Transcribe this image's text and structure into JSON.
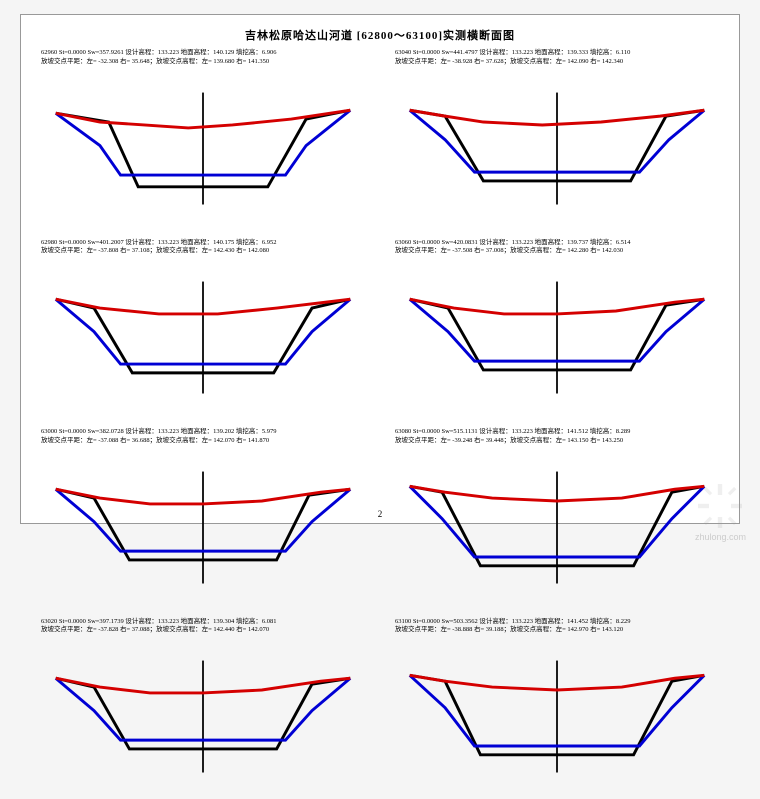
{
  "title": "吉林松原哈达山河道 [62800～63100]实测横断面图",
  "page_number": "2",
  "watermark": "zhulong.com",
  "colors": {
    "ground": "#d40000",
    "design": "#0000d4",
    "excavation": "#000000",
    "center": "#000000",
    "border": "#000000"
  },
  "line_width": 1.0,
  "sections": [
    {
      "id": "62960",
      "line1": "62960 St=0.0000 Sw=357.9261 设计高程：133.223 地面高程：140.129 填挖高：6.906",
      "line2": "放坡交点平距：左= -32.308 右= 35.648；放坡交点高程：左= 139.680 右= 141.350",
      "ground": [
        [
          -50,
          15
        ],
        [
          -35,
          18
        ],
        [
          -20,
          19
        ],
        [
          -5,
          20
        ],
        [
          10,
          19
        ],
        [
          30,
          17
        ],
        [
          50,
          14
        ]
      ],
      "design": [
        [
          -50,
          15
        ],
        [
          -35,
          26
        ],
        [
          -28,
          36
        ],
        [
          28,
          36
        ],
        [
          35,
          26
        ],
        [
          50,
          14
        ]
      ],
      "excavation": [
        [
          -50,
          15
        ],
        [
          -32,
          18
        ],
        [
          -22,
          40
        ],
        [
          22,
          40
        ],
        [
          35,
          17
        ],
        [
          50,
          14
        ]
      ]
    },
    {
      "id": "63040",
      "line1": "63040 St=0.0000 Sw=441.4797 设计高程：133.223 地面高程：139.333 填挖高：6.110",
      "line2": "放坡交点平距：左= -38.928 右= 37.628；放坡交点高程：左= 142.090 右= 142.340",
      "ground": [
        [
          -50,
          14
        ],
        [
          -38,
          16
        ],
        [
          -25,
          18
        ],
        [
          -5,
          19
        ],
        [
          15,
          18
        ],
        [
          35,
          16
        ],
        [
          50,
          14
        ]
      ],
      "design": [
        [
          -50,
          14
        ],
        [
          -38,
          24
        ],
        [
          -28,
          35
        ],
        [
          28,
          35
        ],
        [
          38,
          24
        ],
        [
          50,
          14
        ]
      ],
      "excavation": [
        [
          -50,
          14
        ],
        [
          -38,
          16
        ],
        [
          -25,
          38
        ],
        [
          25,
          38
        ],
        [
          37,
          16
        ],
        [
          50,
          14
        ]
      ]
    },
    {
      "id": "62980",
      "line1": "62980 St=0.0000 Sw=401.2007 设计高程：133.223 地面高程：140.175 填挖高：6.952",
      "line2": "放坡交点平距：左= -37.808 右= 37.108；放坡交点高程：左= 142.430 右= 142.080",
      "ground": [
        [
          -50,
          14
        ],
        [
          -35,
          17
        ],
        [
          -15,
          19
        ],
        [
          5,
          19
        ],
        [
          25,
          17
        ],
        [
          50,
          14
        ]
      ],
      "design": [
        [
          -50,
          14
        ],
        [
          -37,
          25
        ],
        [
          -28,
          36
        ],
        [
          28,
          36
        ],
        [
          37,
          25
        ],
        [
          50,
          14
        ]
      ],
      "excavation": [
        [
          -50,
          14
        ],
        [
          -37,
          17
        ],
        [
          -24,
          39
        ],
        [
          24,
          39
        ],
        [
          37,
          17
        ],
        [
          50,
          14
        ]
      ]
    },
    {
      "id": "63060",
      "line1": "63060 St=0.0000 Sw=420.0831 设计高程：133.223 地面高程：139.737 填挖高：6.514",
      "line2": "放坡交点平距：左= -37.508 右= 37.008；放坡交点高程：左= 142.280 右= 142.030",
      "ground": [
        [
          -50,
          14
        ],
        [
          -35,
          17
        ],
        [
          -18,
          19
        ],
        [
          0,
          19
        ],
        [
          20,
          18
        ],
        [
          40,
          15
        ],
        [
          50,
          14
        ]
      ],
      "design": [
        [
          -50,
          14
        ],
        [
          -37,
          25
        ],
        [
          -28,
          35
        ],
        [
          28,
          35
        ],
        [
          37,
          25
        ],
        [
          50,
          14
        ]
      ],
      "excavation": [
        [
          -50,
          14
        ],
        [
          -37,
          17
        ],
        [
          -25,
          38
        ],
        [
          25,
          38
        ],
        [
          37,
          16
        ],
        [
          50,
          14
        ]
      ]
    },
    {
      "id": "63000",
      "line1": "63000 St=0.0000 Sw=382.0728 设计高程：133.223 地面高程：139.202 填挖高：5.979",
      "line2": "放坡交点平距：左= -37.088 右= 36.688；放坡交点高程：左= 142.070 右= 141.870",
      "ground": [
        [
          -50,
          14
        ],
        [
          -35,
          17
        ],
        [
          -18,
          19
        ],
        [
          0,
          19
        ],
        [
          20,
          18
        ],
        [
          40,
          15
        ],
        [
          50,
          14
        ]
      ],
      "design": [
        [
          -50,
          14
        ],
        [
          -37,
          25
        ],
        [
          -28,
          35
        ],
        [
          28,
          35
        ],
        [
          37,
          25
        ],
        [
          50,
          14
        ]
      ],
      "excavation": [
        [
          -50,
          14
        ],
        [
          -37,
          17
        ],
        [
          -25,
          38
        ],
        [
          25,
          38
        ],
        [
          36,
          16
        ],
        [
          50,
          14
        ]
      ]
    },
    {
      "id": "63080",
      "line1": "63080 St=0.0000 Sw=515.1131 设计高程：133.223 地面高程：141.512 填挖高：8.289",
      "line2": "放坡交点平距：左= -39.248 右= 39.448；放坡交点高程：左= 143.150 右= 143.250",
      "ground": [
        [
          -50,
          13
        ],
        [
          -38,
          15
        ],
        [
          -22,
          17
        ],
        [
          0,
          18
        ],
        [
          22,
          17
        ],
        [
          40,
          14
        ],
        [
          50,
          13
        ]
      ],
      "design": [
        [
          -50,
          13
        ],
        [
          -39,
          24
        ],
        [
          -28,
          37
        ],
        [
          28,
          37
        ],
        [
          39,
          24
        ],
        [
          50,
          13
        ]
      ],
      "excavation": [
        [
          -50,
          13
        ],
        [
          -39,
          15
        ],
        [
          -26,
          40
        ],
        [
          26,
          40
        ],
        [
          39,
          15
        ],
        [
          50,
          13
        ]
      ]
    },
    {
      "id": "63020",
      "line1": "63020 St=0.0000 Sw=397.1739 设计高程：133.223 地面高程：139.304 填挖高：6.081",
      "line2": "放坡交点平距：左= -37.828 右= 37.088；放坡交点高程：左= 142.440 右= 142.070",
      "ground": [
        [
          -50,
          14
        ],
        [
          -35,
          17
        ],
        [
          -18,
          19
        ],
        [
          0,
          19
        ],
        [
          20,
          18
        ],
        [
          40,
          15
        ],
        [
          50,
          14
        ]
      ],
      "design": [
        [
          -50,
          14
        ],
        [
          -37,
          25
        ],
        [
          -28,
          35
        ],
        [
          28,
          35
        ],
        [
          37,
          25
        ],
        [
          50,
          14
        ]
      ],
      "excavation": [
        [
          -50,
          14
        ],
        [
          -37,
          17
        ],
        [
          -25,
          38
        ],
        [
          25,
          38
        ],
        [
          37,
          16
        ],
        [
          50,
          14
        ]
      ]
    },
    {
      "id": "63100",
      "line1": "63100 St=0.0000 Sw=503.3562 设计高程：133.223 地面高程：141.452 填挖高：8.229",
      "line2": "放坡交点平距：左= -38.888 右= 39.188；放坡交点高程：左= 142.970 右= 143.120",
      "ground": [
        [
          -50,
          13
        ],
        [
          -38,
          15
        ],
        [
          -22,
          17
        ],
        [
          0,
          18
        ],
        [
          22,
          17
        ],
        [
          40,
          14
        ],
        [
          50,
          13
        ]
      ],
      "design": [
        [
          -50,
          13
        ],
        [
          -38,
          24
        ],
        [
          -28,
          37
        ],
        [
          28,
          37
        ],
        [
          39,
          24
        ],
        [
          50,
          13
        ]
      ],
      "excavation": [
        [
          -50,
          13
        ],
        [
          -38,
          15
        ],
        [
          -26,
          40
        ],
        [
          26,
          40
        ],
        [
          39,
          15
        ],
        [
          50,
          13
        ]
      ]
    }
  ]
}
